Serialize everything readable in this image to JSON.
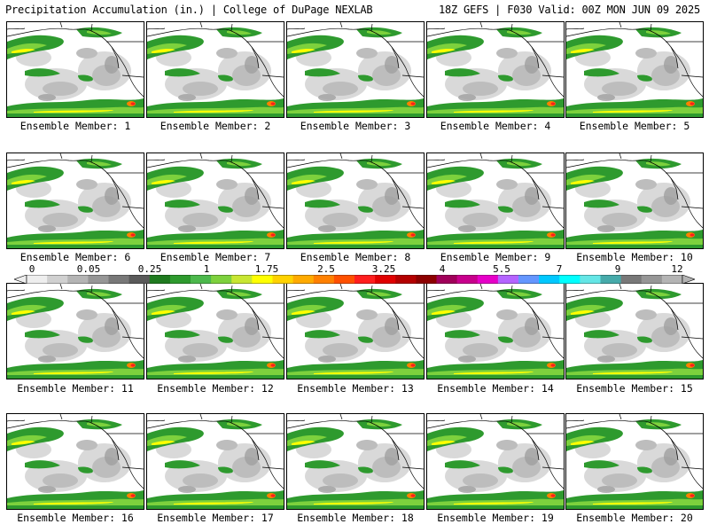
{
  "header": {
    "left": "Precipitation Accumulation (in.) | College of DuPage NEXLAB",
    "right": "18Z GEFS | F030 Valid: 00Z MON JUN 09 2025"
  },
  "panels": [
    {
      "label": "Ensemble Member: 1"
    },
    {
      "label": "Ensemble Member: 2"
    },
    {
      "label": "Ensemble Member: 3"
    },
    {
      "label": "Ensemble Member: 4"
    },
    {
      "label": "Ensemble Member: 5"
    },
    {
      "label": "Ensemble Member: 6"
    },
    {
      "label": "Ensemble Member: 7"
    },
    {
      "label": "Ensemble Member: 8"
    },
    {
      "label": "Ensemble Member: 9"
    },
    {
      "label": "Ensemble Member: 10"
    },
    {
      "label": "Ensemble Member: 11"
    },
    {
      "label": "Ensemble Member: 12"
    },
    {
      "label": "Ensemble Member: 13"
    },
    {
      "label": "Ensemble Member: 14"
    },
    {
      "label": "Ensemble Member: 15"
    },
    {
      "label": "Ensemble Member: 16"
    },
    {
      "label": "Ensemble Member: 17"
    },
    {
      "label": "Ensemble Member: 18"
    },
    {
      "label": "Ensemble Member: 19"
    },
    {
      "label": "Ensemble Member: 20"
    }
  ],
  "colorbar": {
    "ticks": [
      "0",
      "0.05",
      "0.25",
      "1",
      "1.75",
      "2.5",
      "3.25",
      "4",
      "5.5",
      "7",
      "9",
      "12"
    ],
    "colors": [
      "#eeeeee",
      "#d0d0d0",
      "#b4b4b4",
      "#969696",
      "#787878",
      "#5a5a5a",
      "#1f7a1f",
      "#2e9a2e",
      "#4cb84c",
      "#7dd13d",
      "#c8e632",
      "#ffff00",
      "#ffd200",
      "#ffaa00",
      "#ff8000",
      "#ff5000",
      "#ff1e1e",
      "#e00000",
      "#b40000",
      "#8c0000",
      "#a0005a",
      "#c8008c",
      "#e600c8",
      "#b464ff",
      "#6496ff",
      "#00c8ff",
      "#00ffff",
      "#64e6e6",
      "#46aaaa",
      "#787878",
      "#969696",
      "#b4b4b4"
    ]
  }
}
